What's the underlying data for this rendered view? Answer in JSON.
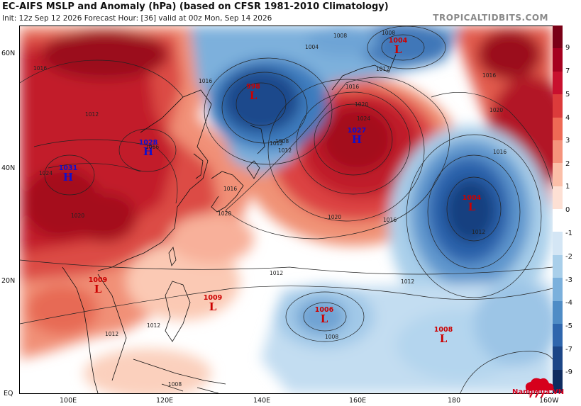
{
  "header": {
    "title": "EC-AIFS MSLP and Anomaly (hPa) (based on CFSR 1981-2010 Climatology)",
    "subtitle": "Init: 12z Sep 12 2026   Forecast Hour: [36]   valid at 00z Mon, Sep 14 2026",
    "brand": "TROPICALTIDBITS.COM"
  },
  "axes": {
    "lat_labels": [
      "60N",
      "40N",
      "20N",
      "EQ"
    ],
    "lon_labels": [
      "100E",
      "120E",
      "140E",
      "160E",
      "180",
      "160W"
    ]
  },
  "colorbar": {
    "labels": [
      "9",
      "7",
      "5",
      "4",
      "3",
      "2",
      "1",
      "0",
      "-1",
      "-2",
      "-3",
      "-4",
      "-5",
      "-7",
      "-9"
    ],
    "colors": [
      "#7a0016",
      "#a5001f",
      "#c8102e",
      "#dc3b3b",
      "#ee6a55",
      "#f5937c",
      "#fbbfa8",
      "#fde0d4",
      "#ffffff",
      "#d4e6f5",
      "#a9cfea",
      "#7bb0dc",
      "#4f8cc6",
      "#2f66ad",
      "#1c4687",
      "#0f2c60"
    ]
  },
  "systems": [
    {
      "type": "H",
      "value": "1028"
    },
    {
      "type": "H",
      "value": "1031"
    },
    {
      "type": "L",
      "value": "998"
    },
    {
      "type": "H",
      "value": "1027"
    },
    {
      "type": "L",
      "value": "1004"
    },
    {
      "type": "L",
      "value": "1004"
    },
    {
      "type": "L",
      "value": "1009"
    },
    {
      "type": "L",
      "value": "1009"
    },
    {
      "type": "L",
      "value": "1006"
    },
    {
      "type": "L",
      "value": "1008"
    }
  ],
  "isobar_labels": [
    "1008",
    "1004",
    "1008",
    "1012",
    "1016",
    "1020",
    "1024",
    "1020",
    "1016",
    "1012",
    "1016",
    "1020",
    "1024",
    "1020",
    "1016",
    "1016",
    "1012",
    "1012",
    "1008",
    "1008",
    "1012",
    "1016",
    "1020",
    "1016",
    "1012",
    "1012",
    "1008",
    "1012",
    "1012",
    "1016"
  ],
  "watermark": {
    "text": "NangMua.VN"
  }
}
